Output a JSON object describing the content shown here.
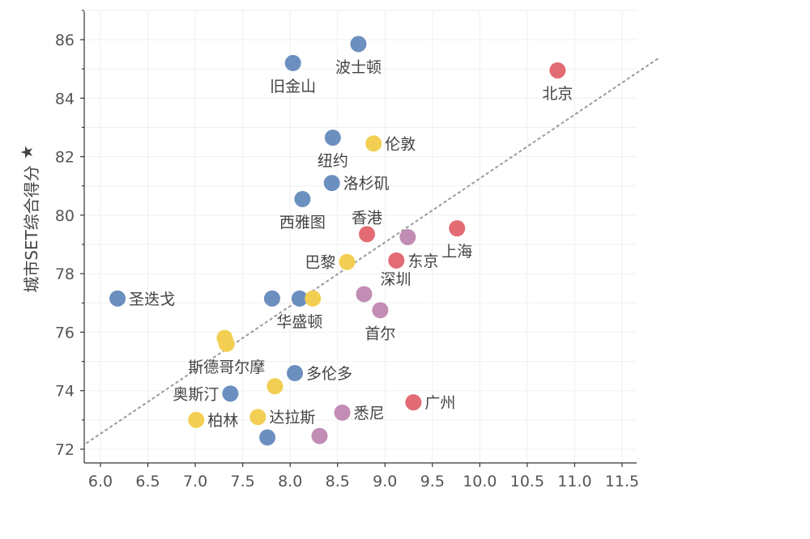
{
  "chart_data": {
    "type": "scatter",
    "title": "",
    "xlabel": "",
    "ylabel": "城市SET综合得分",
    "ylabel_marker": "★",
    "xlim": [
      5.85,
      11.95
    ],
    "ylim": [
      71.6,
      87.0
    ],
    "x_ticks": [
      6.0,
      6.5,
      7.0,
      7.5,
      8.0,
      8.5,
      9.0,
      9.5,
      10.0,
      10.5,
      11.0,
      11.5
    ],
    "x_tick_labels": [
      "6.0",
      "6.5",
      "7.0",
      "7.5",
      "8.0",
      "8.5",
      "9.0",
      "9.5",
      "10.0",
      "10.5",
      "11.0",
      "11.5"
    ],
    "y_ticks": [
      72,
      74,
      76,
      78,
      80,
      82,
      84,
      86
    ],
    "y_tick_labels": [
      "72",
      "74",
      "76",
      "78",
      "80",
      "82",
      "84",
      "86"
    ],
    "grid": true,
    "trendline": {
      "x": [
        5.85,
        11.9
      ],
      "y": [
        72.2,
        85.4
      ],
      "style": "dashed"
    },
    "colors": {
      "blue": "#6b8fbf",
      "yellow": "#f2cf52",
      "red": "#e36b73",
      "purple": "#c28db4"
    },
    "points": [
      {
        "x": 8.72,
        "y": 85.85,
        "color": "blue",
        "label": "波士顿",
        "label_pos": "below"
      },
      {
        "x": 8.03,
        "y": 85.2,
        "color": "blue",
        "label": "旧金山",
        "label_pos": "below"
      },
      {
        "x": 10.82,
        "y": 84.95,
        "color": "red",
        "label": "北京",
        "label_pos": "below"
      },
      {
        "x": 8.45,
        "y": 82.65,
        "color": "blue",
        "label": "纽约",
        "label_pos": "below"
      },
      {
        "x": 8.88,
        "y": 82.45,
        "color": "yellow",
        "label": "伦敦",
        "label_pos": "right"
      },
      {
        "x": 8.44,
        "y": 81.1,
        "color": "blue",
        "label": "洛杉矶",
        "label_pos": "right"
      },
      {
        "x": 8.13,
        "y": 80.55,
        "color": "blue",
        "label": "西雅图",
        "label_pos": "below"
      },
      {
        "x": 8.81,
        "y": 79.35,
        "color": "red",
        "label": "香港",
        "label_pos": "above"
      },
      {
        "x": 9.24,
        "y": 79.25,
        "color": "purple",
        "label": "",
        "label_pos": "none"
      },
      {
        "x": 9.76,
        "y": 79.55,
        "color": "red",
        "label": "上海",
        "label_pos": "below"
      },
      {
        "x": 9.12,
        "y": 78.45,
        "color": "red",
        "label": "东京",
        "label_pos": "right"
      },
      {
        "x": 8.6,
        "y": 78.4,
        "color": "yellow",
        "label": "巴黎",
        "label_pos": "left"
      },
      {
        "x": 8.78,
        "y": 77.3,
        "color": "purple",
        "label": "深圳",
        "label_pos": "above-right"
      },
      {
        "x": 6.18,
        "y": 77.15,
        "color": "blue",
        "label": "圣迭戈",
        "label_pos": "right"
      },
      {
        "x": 7.81,
        "y": 77.15,
        "color": "blue",
        "label": "",
        "label_pos": "none"
      },
      {
        "x": 8.1,
        "y": 77.15,
        "color": "blue",
        "label": "华盛顿",
        "label_pos": "below"
      },
      {
        "x": 8.24,
        "y": 77.15,
        "color": "yellow",
        "label": "",
        "label_pos": "none"
      },
      {
        "x": 8.95,
        "y": 76.75,
        "color": "purple",
        "label": "首尔",
        "label_pos": "below"
      },
      {
        "x": 7.31,
        "y": 75.8,
        "color": "yellow",
        "label": "",
        "label_pos": "none"
      },
      {
        "x": 7.33,
        "y": 75.6,
        "color": "yellow",
        "label": "斯德哥尔摩",
        "label_pos": "below"
      },
      {
        "x": 8.05,
        "y": 74.6,
        "color": "blue",
        "label": "多伦多",
        "label_pos": "right"
      },
      {
        "x": 7.84,
        "y": 74.15,
        "color": "yellow",
        "label": "",
        "label_pos": "none"
      },
      {
        "x": 7.37,
        "y": 73.9,
        "color": "blue",
        "label": "奥斯汀",
        "label_pos": "left"
      },
      {
        "x": 9.3,
        "y": 73.6,
        "color": "red",
        "label": "广州",
        "label_pos": "right"
      },
      {
        "x": 7.01,
        "y": 73.0,
        "color": "yellow",
        "label": "柏林",
        "label_pos": "right"
      },
      {
        "x": 7.66,
        "y": 73.1,
        "color": "yellow",
        "label": "达拉斯",
        "label_pos": "right"
      },
      {
        "x": 8.55,
        "y": 73.25,
        "color": "purple",
        "label": "悉尼",
        "label_pos": "right"
      },
      {
        "x": 7.76,
        "y": 72.4,
        "color": "blue",
        "label": "",
        "label_pos": "none"
      },
      {
        "x": 8.31,
        "y": 72.45,
        "color": "purple",
        "label": "",
        "label_pos": "none"
      }
    ]
  }
}
